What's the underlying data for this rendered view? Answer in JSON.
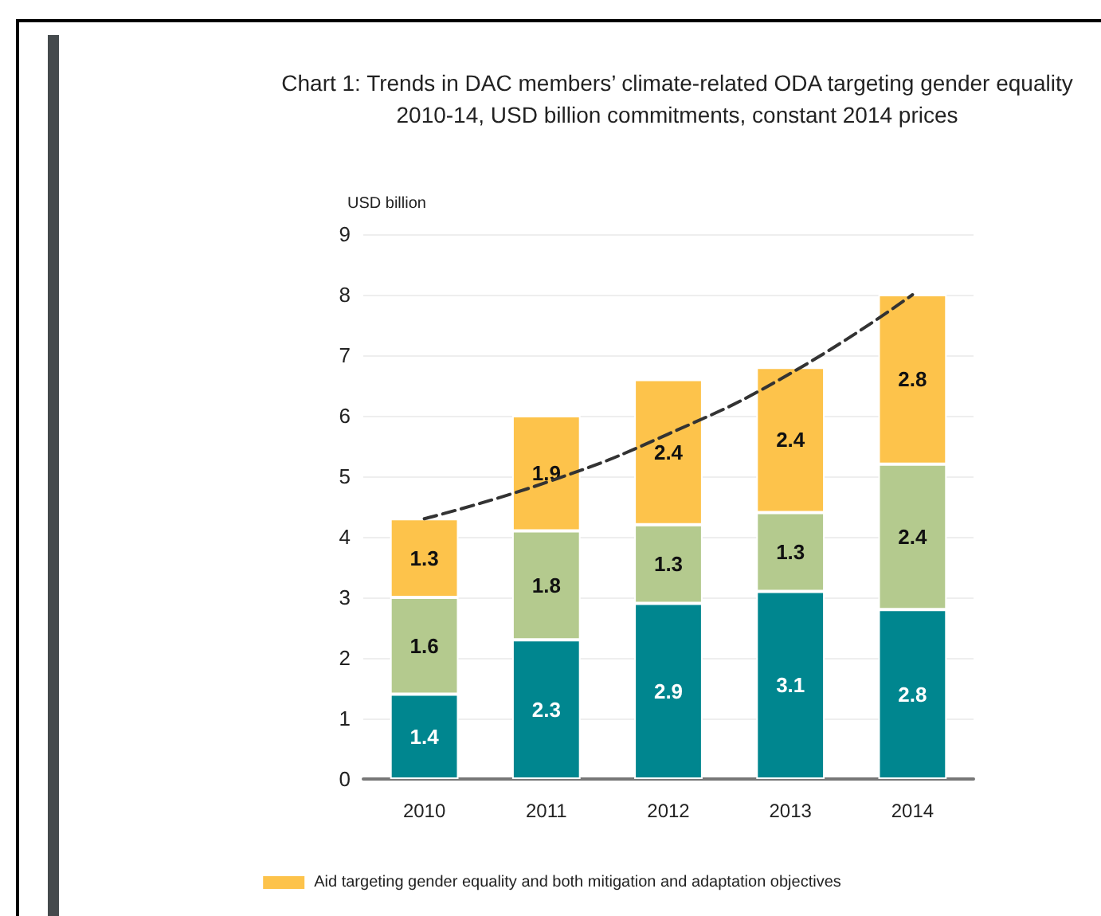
{
  "chart_data": {
    "type": "bar",
    "title": "Chart 1: Trends in DAC members’ climate-related ODA targeting gender equality",
    "subtitle": "2010-14, USD billion commitments, constant 2014 prices",
    "ylabel": "USD billion",
    "categories": [
      "2010",
      "2011",
      "2012",
      "2013",
      "2014"
    ],
    "stacked": true,
    "ylim": [
      0,
      9
    ],
    "yticks": [
      0,
      1,
      2,
      3,
      4,
      5,
      6,
      7,
      8,
      9
    ],
    "grid": "y",
    "legend": "bottom",
    "series": [
      {
        "color": "#00868f",
        "values": [
          1.4,
          2.3,
          2.9,
          3.1,
          2.8
        ],
        "value_labels": [
          "1.4",
          "2.3",
          "2.9",
          "3.1",
          "2.8"
        ]
      },
      {
        "color": "#b4ca8e",
        "values": [
          1.6,
          1.8,
          1.3,
          1.3,
          2.4
        ],
        "value_labels": [
          "1.6",
          "1.8",
          "1.3",
          "1.3",
          "2.4"
        ]
      },
      {
        "name": "Aid targeting gender equality and both mitigation and adaptation objectives",
        "color": "#fdc34b",
        "values": [
          1.3,
          1.9,
          2.4,
          2.4,
          2.8
        ],
        "value_labels": [
          "1.3",
          "1.9",
          "2.4",
          "2.4",
          "2.8"
        ]
      },
      {
        "type": "line",
        "color": "#333333",
        "line_style": "dashed",
        "marker": "none",
        "values": [
          4.3,
          4.9,
          5.7,
          6.7,
          8.0
        ]
      }
    ]
  }
}
